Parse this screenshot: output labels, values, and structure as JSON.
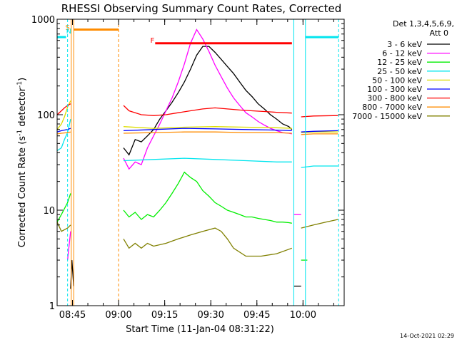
{
  "chart_data": {
    "type": "line",
    "title": "RHESSI Observing Summary Count Rates, Corrected",
    "xlabel": "Start Time (11-Jan-04 08:31:22)",
    "ylabel_main": "Corrected Count Rate (s",
    "ylabel_sup1": "-1",
    "ylabel_mid": " detector",
    "ylabel_sup2": "-1",
    "ylabel_end": ")",
    "yscale": "log",
    "ylim": [
      1,
      1000
    ],
    "xlim_minutes": [
      8.6,
      102.0
    ],
    "x_ticks": [
      {
        "minute": 13.6,
        "label": "08:45"
      },
      {
        "minute": 28.6,
        "label": "09:00"
      },
      {
        "minute": 43.6,
        "label": "09:15"
      },
      {
        "minute": 58.6,
        "label": "09:30"
      },
      {
        "minute": 73.6,
        "label": "09:45"
      },
      {
        "minute": 88.6,
        "label": "10:00"
      }
    ],
    "y_ticks": [
      {
        "value": 1,
        "label": "1"
      },
      {
        "value": 10,
        "label": "10"
      },
      {
        "value": 100,
        "label": "100"
      },
      {
        "value": 1000,
        "label": "1000"
      }
    ],
    "legend_header": "Det 1,3,4,5,6,9,",
    "legend_header2": "Att 0",
    "legend_position": "top-right, outside plot",
    "footer_date": "14-Oct-2021 02:29",
    "markers": [
      {
        "label": "S",
        "color": "#ff8c00",
        "minute": 12.0
      },
      {
        "label": "N",
        "color": "#00e5ee",
        "minute": 12.4
      },
      {
        "label": "F",
        "color": "#ff0000",
        "minute": 39.6
      }
    ],
    "flare_bar": {
      "start": 40.5,
      "end": 85.0,
      "value": 560,
      "color": "#ff0000"
    },
    "saa_bar": {
      "start": 14.0,
      "end": 28.6,
      "value": 780,
      "color": "#ff8c00"
    },
    "night_bars": [
      {
        "start": 8.6,
        "end": 11.5,
        "value": 650,
        "color": "#00e5ee"
      },
      {
        "start": 89.4,
        "end": 100.2,
        "value": 650,
        "color": "#00e5ee"
      }
    ],
    "vlines": [
      {
        "minute": 12.0,
        "color": "#00e5ee",
        "style": "dashed"
      },
      {
        "minute": 13.2,
        "color": "#ff8c00",
        "style": "solid"
      },
      {
        "minute": 14.0,
        "color": "#ff8c00",
        "style": "solid"
      },
      {
        "minute": 28.6,
        "color": "#ff8c00",
        "style": "dashed"
      },
      {
        "minute": 85.6,
        "color": "#00e5ee",
        "style": "solid"
      },
      {
        "minute": 89.4,
        "color": "#00e5ee",
        "style": "solid"
      },
      {
        "minute": 100.2,
        "color": "#00e5ee",
        "style": "dashed"
      }
    ],
    "series": [
      {
        "name": "3 - 6 keV",
        "color": "#000000",
        "segments": [
          [
            [
              13.0,
              1.5
            ],
            [
              13.4,
              3.0
            ],
            [
              14.0,
              1.6
            ]
          ],
          [
            [
              30.2,
              45
            ],
            [
              32.0,
              38
            ],
            [
              34.0,
              55
            ],
            [
              36.0,
              52
            ],
            [
              38.0,
              60
            ],
            [
              40.0,
              70
            ],
            [
              42.0,
              90
            ],
            [
              44.0,
              110
            ],
            [
              46.0,
              135
            ],
            [
              48.0,
              170
            ],
            [
              50.0,
              220
            ],
            [
              52.0,
              300
            ],
            [
              54.0,
              420
            ],
            [
              56.0,
              520
            ],
            [
              58.0,
              520
            ],
            [
              60.0,
              450
            ],
            [
              62.0,
              380
            ],
            [
              64.0,
              320
            ],
            [
              66.0,
              270
            ],
            [
              68.0,
              220
            ],
            [
              70.0,
              180
            ],
            [
              72.0,
              155
            ],
            [
              74.0,
              130
            ],
            [
              76.0,
              115
            ],
            [
              78.0,
              100
            ],
            [
              80.0,
              90
            ],
            [
              82.0,
              80
            ],
            [
              84.0,
              75
            ],
            [
              85.0,
              70
            ]
          ],
          [
            [
              85.5,
              1.6
            ],
            [
              88.0,
              1.6
            ]
          ]
        ]
      },
      {
        "name": "6 - 12 keV",
        "color": "#ff00ff",
        "segments": [
          [
            [
              12.0,
              3.0
            ],
            [
              13.0,
              6.0
            ]
          ],
          [
            [
              30.2,
              35
            ],
            [
              32.0,
              27
            ],
            [
              34.0,
              32
            ],
            [
              36.0,
              30
            ],
            [
              38.0,
              45
            ],
            [
              40.0,
              60
            ],
            [
              42.0,
              80
            ],
            [
              44.0,
              110
            ],
            [
              46.0,
              150
            ],
            [
              48.0,
              220
            ],
            [
              50.0,
              340
            ],
            [
              52.0,
              560
            ],
            [
              54.0,
              780
            ],
            [
              56.0,
              620
            ],
            [
              58.0,
              460
            ],
            [
              60.0,
              330
            ],
            [
              62.0,
              250
            ],
            [
              64.0,
              190
            ],
            [
              66.0,
              150
            ],
            [
              68.0,
              125
            ],
            [
              70.0,
              105
            ],
            [
              72.0,
              95
            ],
            [
              74.0,
              85
            ],
            [
              76.0,
              78
            ],
            [
              78.0,
              72
            ],
            [
              80.0,
              68
            ],
            [
              82.0,
              65
            ],
            [
              84.0,
              64
            ],
            [
              85.0,
              63
            ]
          ],
          [
            [
              85.6,
              9.0
            ],
            [
              88.0,
              9.0
            ]
          ]
        ]
      },
      {
        "name": "12 - 25 keV",
        "color": "#00ee00",
        "segments": [
          [
            [
              8.6,
              7.5
            ],
            [
              10.0,
              9.0
            ],
            [
              12.0,
              12.0
            ],
            [
              13.0,
              15.0
            ]
          ],
          [
            [
              30.2,
              10.0
            ],
            [
              32.0,
              8.5
            ],
            [
              34.0,
              9.5
            ],
            [
              36.0,
              8.0
            ],
            [
              38.0,
              9.0
            ],
            [
              40.0,
              8.5
            ],
            [
              42.0,
              10.0
            ],
            [
              44.0,
              12.0
            ],
            [
              46.0,
              15.0
            ],
            [
              48.0,
              19.0
            ],
            [
              50.0,
              25.0
            ],
            [
              52.0,
              22.0
            ],
            [
              54.0,
              20.0
            ],
            [
              56.0,
              16.0
            ],
            [
              58.0,
              14.0
            ],
            [
              60.0,
              12.0
            ],
            [
              62.0,
              11.0
            ],
            [
              64.0,
              10.0
            ],
            [
              66.0,
              9.5
            ],
            [
              68.0,
              9.0
            ],
            [
              70.0,
              8.5
            ],
            [
              72.0,
              8.5
            ],
            [
              74.0,
              8.2
            ],
            [
              76.0,
              8.0
            ],
            [
              78.0,
              7.8
            ],
            [
              80.0,
              7.5
            ],
            [
              82.0,
              7.5
            ],
            [
              84.0,
              7.4
            ],
            [
              85.0,
              7.3
            ]
          ],
          [
            [
              88.0,
              3.0
            ],
            [
              90.0,
              3.0
            ]
          ]
        ]
      },
      {
        "name": "25 - 50 keV",
        "color": "#00e5ee",
        "segments": [
          [
            [
              8.6,
              42
            ],
            [
              10.0,
              45
            ],
            [
              11.0,
              55
            ],
            [
              12.0,
              65
            ],
            [
              13.0,
              90
            ]
          ],
          [
            [
              30.2,
              33
            ],
            [
              40.0,
              34
            ],
            [
              50.0,
              35
            ],
            [
              60.0,
              34
            ],
            [
              70.0,
              33
            ],
            [
              80.0,
              32
            ],
            [
              85.0,
              32
            ]
          ],
          [
            [
              88.0,
              28
            ],
            [
              92.0,
              29
            ],
            [
              100.0,
              29
            ]
          ]
        ]
      },
      {
        "name": "50 - 100 keV",
        "color": "#dddd00",
        "segments": [
          [
            [
              8.6,
              70
            ],
            [
              10.0,
              80
            ],
            [
              11.0,
              95
            ],
            [
              12.0,
              120
            ],
            [
              13.0,
              140
            ]
          ],
          [
            [
              30.2,
              75
            ],
            [
              40.0,
              72
            ],
            [
              50.0,
              74
            ],
            [
              60.0,
              75
            ],
            [
              70.0,
              74
            ],
            [
              80.0,
              73
            ],
            [
              85.0,
              72
            ]
          ],
          [
            [
              88.0,
              65
            ],
            [
              92.0,
              66
            ],
            [
              100.0,
              66
            ]
          ]
        ]
      },
      {
        "name": "100 - 300 keV",
        "color": "#0000ff",
        "segments": [
          [
            [
              8.6,
              66
            ],
            [
              10.0,
              68
            ],
            [
              12.0,
              70
            ],
            [
              13.0,
              72
            ]
          ],
          [
            [
              30.2,
              68
            ],
            [
              40.0,
              70
            ],
            [
              50.0,
              72
            ],
            [
              60.0,
              71
            ],
            [
              70.0,
              70
            ],
            [
              80.0,
              69
            ],
            [
              85.0,
              68
            ]
          ],
          [
            [
              88.0,
              66
            ],
            [
              92.0,
              67
            ],
            [
              100.0,
              68
            ]
          ]
        ]
      },
      {
        "name": "300 - 800 keV",
        "color": "#ff0000",
        "segments": [
          [
            [
              8.6,
              100
            ],
            [
              10.0,
              110
            ],
            [
              11.0,
              118
            ],
            [
              12.0,
              125
            ],
            [
              13.0,
              130
            ]
          ],
          [
            [
              30.2,
              125
            ],
            [
              32.0,
              110
            ],
            [
              34.0,
              105
            ],
            [
              36.0,
              100
            ],
            [
              40.0,
              98
            ],
            [
              44.0,
              100
            ],
            [
              48.0,
              105
            ],
            [
              52.0,
              110
            ],
            [
              56.0,
              115
            ],
            [
              60.0,
              118
            ],
            [
              64.0,
              115
            ],
            [
              68.0,
              112
            ],
            [
              72.0,
              110
            ],
            [
              76.0,
              108
            ],
            [
              80.0,
              106
            ],
            [
              85.0,
              104
            ]
          ],
          [
            [
              88.0,
              95
            ],
            [
              92.0,
              97
            ],
            [
              100.0,
              98
            ]
          ]
        ]
      },
      {
        "name": "800 - 7000 keV",
        "color": "#ff8c00",
        "segments": [
          [
            [
              8.6,
              63
            ],
            [
              10.0,
              64
            ],
            [
              12.0,
              65
            ],
            [
              13.0,
              66
            ]
          ],
          [
            [
              30.2,
              64
            ],
            [
              40.0,
              65
            ],
            [
              50.0,
              66
            ],
            [
              60.0,
              66
            ],
            [
              70.0,
              65
            ],
            [
              80.0,
              65
            ],
            [
              85.0,
              64
            ]
          ],
          [
            [
              88.0,
              62
            ],
            [
              92.0,
              63
            ],
            [
              100.0,
              63
            ]
          ]
        ]
      },
      {
        "name": "7000 - 15000 keV",
        "color": "#808000",
        "segments": [
          [
            [
              8.6,
              7.5
            ],
            [
              10.0,
              6.0
            ],
            [
              12.0,
              6.5
            ],
            [
              13.0,
              7.0
            ]
          ],
          [
            [
              30.2,
              5.0
            ],
            [
              32.0,
              4.0
            ],
            [
              34.0,
              4.5
            ],
            [
              36.0,
              4.0
            ],
            [
              38.0,
              4.5
            ],
            [
              40.0,
              4.2
            ],
            [
              44.0,
              4.5
            ],
            [
              48.0,
              5.0
            ],
            [
              52.0,
              5.5
            ],
            [
              56.0,
              6.0
            ],
            [
              60.0,
              6.5
            ],
            [
              62.0,
              6.0
            ],
            [
              64.0,
              5.0
            ],
            [
              66.0,
              4.0
            ],
            [
              70.0,
              3.3
            ],
            [
              75.0,
              3.3
            ],
            [
              80.0,
              3.5
            ],
            [
              85.0,
              4.0
            ]
          ],
          [
            [
              88.0,
              6.5
            ],
            [
              92.0,
              7.0
            ],
            [
              96.0,
              7.5
            ],
            [
              100.0,
              8.0
            ]
          ]
        ]
      }
    ]
  }
}
